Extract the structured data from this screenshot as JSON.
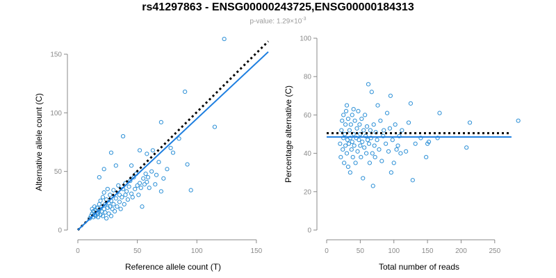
{
  "title": "rs41297863 - ENSG00000243725,ENSG00000184313",
  "subtitle": {
    "prefix": "p-value: 1.29×10",
    "exponent": "-3"
  },
  "colors": {
    "points": "#2b8fd6",
    "fit_line": "#1e7fe0",
    "reference_line": "#000000",
    "axis": "#888888"
  },
  "chart_data": [
    {
      "type": "scatter",
      "title": "",
      "xlabel": "Reference allele count (T)",
      "ylabel": "Alternative allele count (C)",
      "xlim": [
        0,
        160
      ],
      "ylim": [
        0,
        150
      ],
      "xticks": [
        0,
        50,
        100,
        150
      ],
      "yticks": [
        0,
        50,
        100,
        150
      ],
      "fit_line": {
        "style": "solid",
        "from": [
          0,
          0
        ],
        "to": [
          160,
          152
        ]
      },
      "reference_line": {
        "style": "dotted",
        "from": [
          0,
          0
        ],
        "to": [
          160,
          161
        ]
      },
      "points": [
        [
          10,
          10
        ],
        [
          11,
          12
        ],
        [
          12,
          14
        ],
        [
          12,
          18
        ],
        [
          13,
          11
        ],
        [
          13,
          16
        ],
        [
          14,
          13
        ],
        [
          14,
          20
        ],
        [
          15,
          12
        ],
        [
          15,
          17
        ],
        [
          16,
          15
        ],
        [
          16,
          19
        ],
        [
          17,
          11
        ],
        [
          17,
          14
        ],
        [
          18,
          17
        ],
        [
          18,
          22
        ],
        [
          19,
          13
        ],
        [
          19,
          25
        ],
        [
          20,
          16
        ],
        [
          20,
          20
        ],
        [
          21,
          12
        ],
        [
          21,
          28
        ],
        [
          22,
          18
        ],
        [
          22,
          32
        ],
        [
          23,
          15
        ],
        [
          23,
          22
        ],
        [
          24,
          10
        ],
        [
          24,
          26
        ],
        [
          25,
          19
        ],
        [
          25,
          35
        ],
        [
          26,
          14
        ],
        [
          26,
          23
        ],
        [
          27,
          20
        ],
        [
          27,
          30
        ],
        [
          28,
          12
        ],
        [
          28,
          25
        ],
        [
          29,
          18
        ],
        [
          30,
          22
        ],
        [
          30,
          34
        ],
        [
          31,
          16
        ],
        [
          32,
          27
        ],
        [
          33,
          20
        ],
        [
          34,
          38
        ],
        [
          35,
          24
        ],
        [
          35,
          30
        ],
        [
          36,
          18
        ],
        [
          37,
          28
        ],
        [
          38,
          35
        ],
        [
          39,
          22
        ],
        [
          40,
          30
        ],
        [
          40,
          40
        ],
        [
          41,
          33
        ],
        [
          42,
          26
        ],
        [
          43,
          37
        ],
        [
          44,
          42
        ],
        [
          45,
          31
        ],
        [
          46,
          28
        ],
        [
          47,
          45
        ],
        [
          48,
          35
        ],
        [
          49,
          48
        ],
        [
          50,
          38
        ],
        [
          51,
          30
        ],
        [
          52,
          40
        ],
        [
          53,
          36
        ],
        [
          54,
          20
        ],
        [
          55,
          44
        ],
        [
          56,
          39
        ],
        [
          57,
          48
        ],
        [
          58,
          41
        ],
        [
          59,
          45
        ],
        [
          60,
          36
        ],
        [
          62,
          50
        ],
        [
          63,
          68
        ],
        [
          65,
          39
        ],
        [
          66,
          47
        ],
        [
          68,
          58
        ],
        [
          70,
          33
        ],
        [
          70,
          92
        ],
        [
          72,
          44
        ],
        [
          75,
          52
        ],
        [
          78,
          70
        ],
        [
          80,
          66
        ],
        [
          85,
          78
        ],
        [
          90,
          118
        ],
        [
          92,
          56
        ],
        [
          95,
          34
        ],
        [
          115,
          88
        ],
        [
          123,
          163
        ],
        [
          18,
          45
        ],
        [
          22,
          52
        ],
        [
          28,
          66
        ],
        [
          32,
          55
        ],
        [
          38,
          80
        ],
        [
          45,
          55
        ],
        [
          52,
          68
        ],
        [
          58,
          65
        ]
      ]
    },
    {
      "type": "scatter",
      "title": "",
      "xlabel": "Total number of reads",
      "ylabel": "Percentage alternative (C)",
      "xlim": [
        0,
        275
      ],
      "ylim": [
        0,
        100
      ],
      "xticks": [
        0,
        50,
        100,
        150,
        200,
        250
      ],
      "yticks": [
        0,
        20,
        40,
        60,
        80,
        100
      ],
      "fit_line": {
        "style": "solid",
        "y": 48.5
      },
      "reference_line": {
        "style": "dotted",
        "y": 50.5
      },
      "points": [
        [
          20,
          45
        ],
        [
          21,
          38
        ],
        [
          22,
          52
        ],
        [
          23,
          57
        ],
        [
          24,
          42
        ],
        [
          25,
          48
        ],
        [
          25,
          60
        ],
        [
          26,
          35
        ],
        [
          27,
          50
        ],
        [
          28,
          44
        ],
        [
          28,
          55
        ],
        [
          29,
          62
        ],
        [
          30,
          40
        ],
        [
          30,
          65
        ],
        [
          31,
          47
        ],
        [
          32,
          33
        ],
        [
          32,
          58
        ],
        [
          33,
          45
        ],
        [
          34,
          52
        ],
        [
          35,
          30
        ],
        [
          35,
          48
        ],
        [
          36,
          55
        ],
        [
          37,
          42
        ],
        [
          38,
          60
        ],
        [
          38,
          46
        ],
        [
          39,
          38
        ],
        [
          40,
          50
        ],
        [
          40,
          63
        ],
        [
          41,
          44
        ],
        [
          42,
          57
        ],
        [
          43,
          35
        ],
        [
          44,
          48
        ],
        [
          45,
          53
        ],
        [
          46,
          41
        ],
        [
          47,
          62
        ],
        [
          48,
          47
        ],
        [
          49,
          55
        ],
        [
          50,
          44
        ],
        [
          50,
          50
        ],
        [
          51,
          38
        ],
        [
          52,
          58
        ],
        [
          53,
          46
        ],
        [
          54,
          27
        ],
        [
          55,
          52
        ],
        [
          56,
          43
        ],
        [
          57,
          60
        ],
        [
          58,
          49
        ],
        [
          59,
          40
        ],
        [
          60,
          54
        ],
        [
          61,
          47
        ],
        [
          62,
          76
        ],
        [
          63,
          45
        ],
        [
          64,
          35
        ],
        [
          65,
          52
        ],
        [
          66,
          48
        ],
        [
          67,
          72
        ],
        [
          68,
          40
        ],
        [
          69,
          23
        ],
        [
          70,
          55
        ],
        [
          71,
          44
        ],
        [
          72,
          38
        ],
        [
          73,
          51
        ],
        [
          75,
          47
        ],
        [
          76,
          65
        ],
        [
          78,
          42
        ],
        [
          80,
          57
        ],
        [
          82,
          36
        ],
        [
          84,
          49
        ],
        [
          85,
          52
        ],
        [
          88,
          45
        ],
        [
          90,
          61
        ],
        [
          92,
          41
        ],
        [
          94,
          53
        ],
        [
          95,
          70
        ],
        [
          96,
          30
        ],
        [
          98,
          47
        ],
        [
          100,
          35
        ],
        [
          102,
          55
        ],
        [
          104,
          42
        ],
        [
          106,
          44
        ],
        [
          108,
          49
        ],
        [
          110,
          40
        ],
        [
          112,
          52
        ],
        [
          118,
          41
        ],
        [
          122,
          56
        ],
        [
          125,
          66
        ],
        [
          128,
          26
        ],
        [
          132,
          45
        ],
        [
          140,
          48
        ],
        [
          148,
          38
        ],
        [
          150,
          45
        ],
        [
          152,
          46
        ],
        [
          165,
          48
        ],
        [
          168,
          61
        ],
        [
          208,
          43
        ],
        [
          213,
          56
        ],
        [
          285,
          57
        ]
      ]
    }
  ]
}
